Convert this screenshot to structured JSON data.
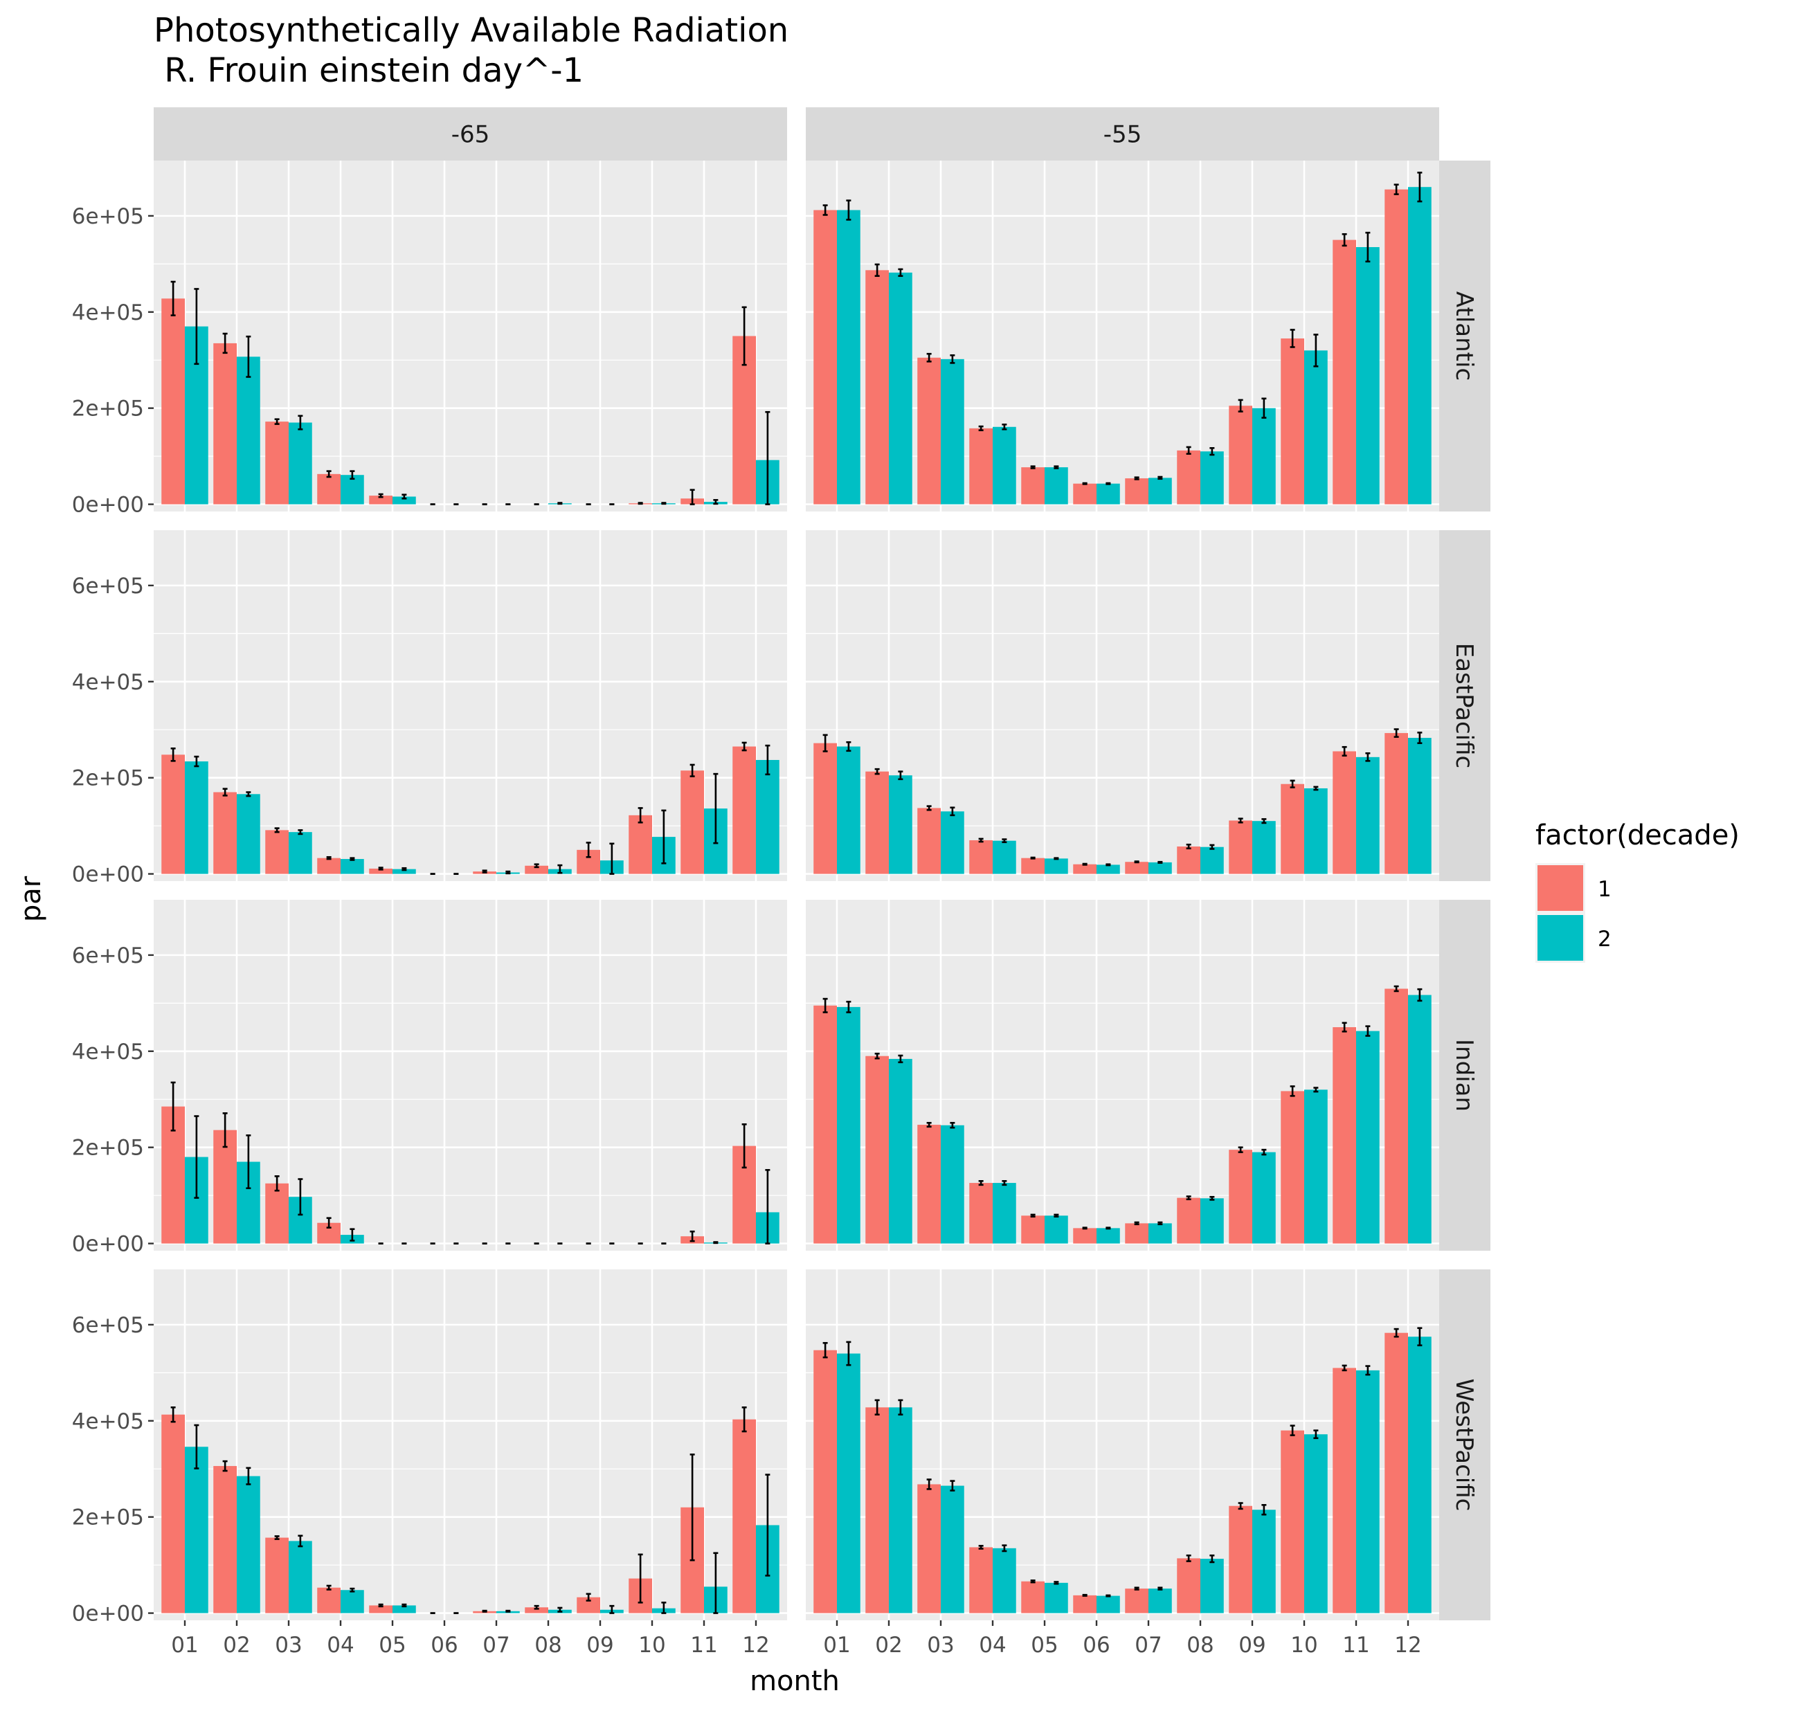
{
  "chart_data": {
    "type": "bar",
    "title_line1": "Photosynthetically Available Radiation",
    "title_line2": " R. Frouin einstein day^-1",
    "xlabel": "month",
    "ylabel": "par",
    "legend": {
      "title": "factor(decade)",
      "position": "right",
      "items": [
        {
          "label": "1",
          "color": "#F8766D"
        },
        {
          "label": "2",
          "color": "#00BFC4"
        }
      ]
    },
    "categories": [
      "01",
      "02",
      "03",
      "04",
      "05",
      "06",
      "07",
      "08",
      "09",
      "10",
      "11",
      "12"
    ],
    "yticks": [
      "0e+00",
      "2e+05",
      "4e+05",
      "6e+05"
    ],
    "ylim": [
      -15000,
      715000
    ],
    "grid": true,
    "columns": [
      "-65",
      "-55"
    ],
    "rows": [
      "Atlantic",
      "EastPacific",
      "Indian",
      "WestPacific"
    ],
    "panels": [
      {
        "col": "-65",
        "row": "Atlantic",
        "series": [
          {
            "name": "1",
            "values": [
              428000,
              335000,
              172000,
              63000,
              18000,
              0,
              0,
              0,
              0,
              2000,
              12000,
              350000
            ],
            "err": [
              35000,
              20000,
              5000,
              6000,
              3000,
              0,
              0,
              0,
              0,
              1000,
              18000,
              60000
            ]
          },
          {
            "name": "2",
            "values": [
              370000,
              307000,
              170000,
              61000,
              16000,
              0,
              0,
              2000,
              0,
              2000,
              5000,
              92000
            ],
            "err": [
              78000,
              42000,
              14000,
              8000,
              4000,
              0,
              0,
              1000,
              0,
              1000,
              4000,
              100000
            ]
          }
        ]
      },
      {
        "col": "-55",
        "row": "Atlantic",
        "series": [
          {
            "name": "1",
            "values": [
              612000,
              487000,
              305000,
              158000,
              77000,
              43000,
              54000,
              112000,
              205000,
              345000,
              550000,
              655000
            ],
            "err": [
              10000,
              12000,
              8000,
              4000,
              2000,
              1000,
              2000,
              7000,
              12000,
              18000,
              12000,
              10000
            ]
          },
          {
            "name": "2",
            "values": [
              612000,
              482000,
              302000,
              161000,
              77000,
              43000,
              55000,
              110000,
              200000,
              320000,
              535000,
              660000
            ],
            "err": [
              20000,
              7000,
              8000,
              5000,
              2000,
              1000,
              2000,
              7000,
              20000,
              33000,
              30000,
              30000
            ]
          }
        ]
      },
      {
        "col": "-65",
        "row": "EastPacific",
        "series": [
          {
            "name": "1",
            "values": [
              248000,
              170000,
              91000,
              33000,
              11000,
              0,
              5000,
              17000,
              50000,
              122000,
              215000,
              265000
            ],
            "err": [
              13000,
              7000,
              4000,
              2000,
              2000,
              0,
              2000,
              3000,
              15000,
              15000,
              12000,
              8000
            ]
          },
          {
            "name": "2",
            "values": [
              234000,
              166000,
              87000,
              31000,
              10000,
              0,
              3000,
              10000,
              28000,
              77000,
              136000,
              237000
            ],
            "err": [
              10000,
              4000,
              4000,
              2000,
              2000,
              0,
              2000,
              8000,
              35000,
              55000,
              72000,
              30000
            ]
          }
        ]
      },
      {
        "col": "-55",
        "row": "EastPacific",
        "series": [
          {
            "name": "1",
            "values": [
              272000,
              213000,
              137000,
              70000,
              33000,
              20000,
              25000,
              57000,
              111000,
              187000,
              255000,
              293000
            ],
            "err": [
              17000,
              5000,
              4000,
              3000,
              1000,
              1000,
              1000,
              4000,
              4000,
              7000,
              9000,
              8000
            ]
          },
          {
            "name": "2",
            "values": [
              265000,
              205000,
              130000,
              69000,
              32000,
              19000,
              24000,
              56000,
              110000,
              178000,
              243000,
              283000
            ],
            "err": [
              9000,
              8000,
              8000,
              3000,
              1000,
              1000,
              1000,
              4000,
              4000,
              3000,
              8000,
              11000
            ]
          }
        ]
      },
      {
        "col": "-65",
        "row": "Indian",
        "series": [
          {
            "name": "1",
            "values": [
              285000,
              236000,
              125000,
              43000,
              0,
              0,
              0,
              0,
              0,
              0,
              15000,
              203000
            ],
            "err": [
              50000,
              35000,
              15000,
              10000,
              0,
              0,
              0,
              0,
              0,
              0,
              10000,
              45000
            ]
          },
          {
            "name": "2",
            "values": [
              180000,
              170000,
              97000,
              18000,
              0,
              0,
              0,
              0,
              0,
              0,
              2000,
              65000
            ],
            "err": [
              85000,
              55000,
              37000,
              12000,
              0,
              0,
              0,
              0,
              0,
              0,
              1000,
              88000
            ]
          }
        ]
      },
      {
        "col": "-55",
        "row": "Indian",
        "series": [
          {
            "name": "1",
            "values": [
              495000,
              390000,
              247000,
              126000,
              58000,
              32000,
              42000,
              95000,
              195000,
              317000,
              450000,
              530000
            ],
            "err": [
              14000,
              5000,
              4000,
              4000,
              2000,
              1000,
              2000,
              3000,
              5000,
              10000,
              9000,
              5000
            ]
          },
          {
            "name": "2",
            "values": [
              492000,
              384000,
              246000,
              126000,
              58000,
              32000,
              42000,
              94000,
              190000,
              320000,
              442000,
              517000
            ],
            "err": [
              11000,
              7000,
              5000,
              4000,
              2000,
              1000,
              2000,
              3000,
              5000,
              4000,
              10000,
              12000
            ]
          }
        ]
      },
      {
        "col": "-65",
        "row": "WestPacific",
        "series": [
          {
            "name": "1",
            "values": [
              413000,
              306000,
              157000,
              53000,
              16000,
              0,
              4000,
              12000,
              33000,
              72000,
              220000,
              403000
            ],
            "err": [
              15000,
              10000,
              3000,
              4000,
              2000,
              0,
              1000,
              3000,
              7000,
              50000,
              110000,
              25000
            ]
          },
          {
            "name": "2",
            "values": [
              346000,
              285000,
              150000,
              48000,
              16000,
              0,
              4000,
              7000,
              7000,
              10000,
              55000,
              183000
            ],
            "err": [
              45000,
              17000,
              11000,
              3000,
              2000,
              0,
              1000,
              4000,
              8000,
              12000,
              70000,
              105000
            ]
          }
        ]
      },
      {
        "col": "-55",
        "row": "WestPacific",
        "series": [
          {
            "name": "1",
            "values": [
              547000,
              428000,
              268000,
              137000,
              66000,
              37000,
              51000,
              114000,
              223000,
              380000,
              510000,
              583000
            ],
            "err": [
              15000,
              15000,
              10000,
              3000,
              2000,
              1000,
              2000,
              6000,
              6000,
              10000,
              5000,
              8000
            ]
          },
          {
            "name": "2",
            "values": [
              540000,
              428000,
              265000,
              135000,
              63000,
              36000,
              51000,
              113000,
              215000,
              372000,
              505000,
              575000
            ],
            "err": [
              24000,
              15000,
              10000,
              6000,
              2000,
              1000,
              2000,
              7000,
              10000,
              8000,
              9000,
              18000
            ]
          }
        ]
      }
    ]
  }
}
